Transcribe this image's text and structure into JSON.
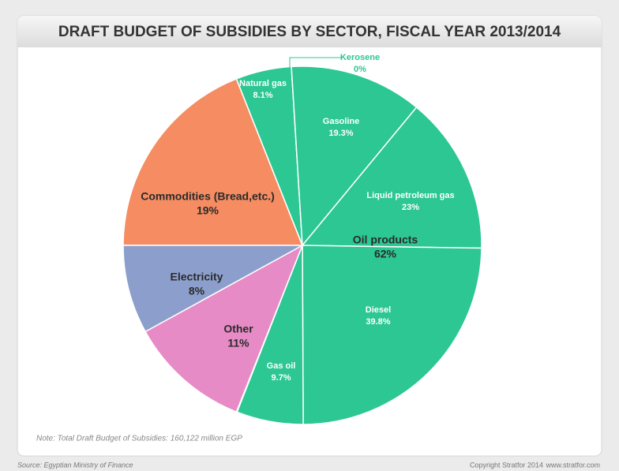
{
  "chart_data": {
    "type": "pie",
    "title": "DRAFT BUDGET OF SUBSIDIES BY SECTOR, FISCAL YEAR 2013/2014",
    "categories": [
      "Commodities (Bread,etc.)",
      "Oil products",
      "Other",
      "Electricity"
    ],
    "values": [
      19,
      62,
      11,
      8
    ],
    "value_labels": [
      "19%",
      "62%",
      "11%",
      "8%"
    ],
    "colors": [
      "#f58c62",
      "#2cc792",
      "#e68bc6",
      "#8c9fcc"
    ],
    "oil_products_breakdown": {
      "categories": [
        "Natural gas",
        "Kerosene",
        "Gasoline",
        "Liquid petroleum gas",
        "Diesel",
        "Gas oil"
      ],
      "values": [
        8.1,
        0,
        19.3,
        23,
        39.8,
        9.7
      ],
      "value_labels": [
        "8.1%",
        "0%",
        "19.3%",
        "23%",
        "39.8%",
        "9.7%"
      ],
      "color": "#2cc792"
    },
    "note": "Note: Total Draft Budget of Subsidies: 160,122 million EGP",
    "source": "Source: Egyptian Ministry of Finance",
    "copyright": "Copyright Stratfor 2014",
    "website": "www.stratfor.com"
  }
}
